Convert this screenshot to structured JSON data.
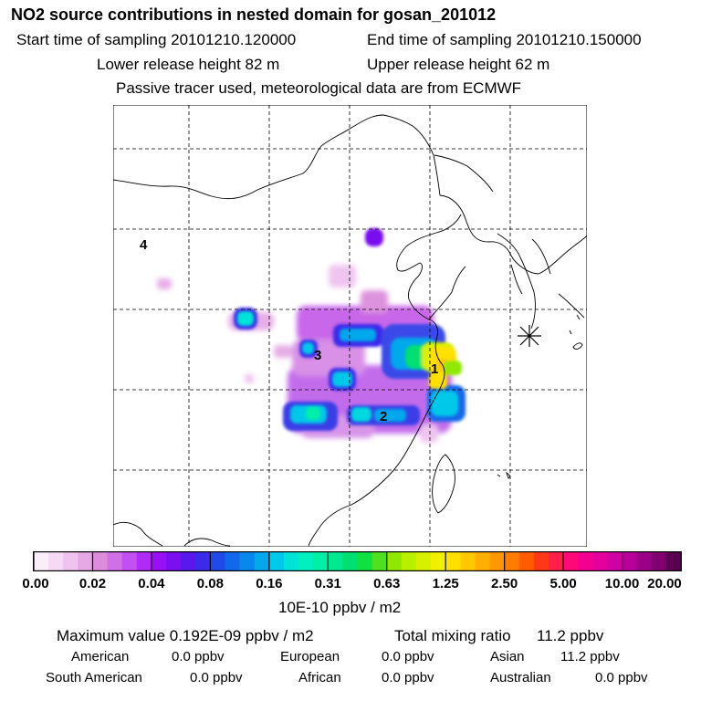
{
  "header": {
    "title": "NO2 source contributions in nested domain for gosan_201012",
    "start": "Start time of sampling 20101210.120000",
    "end": "End time of sampling 20101210.150000",
    "lower": "Lower release height   82 m",
    "upper": "Upper release height   62 m",
    "note": "Passive tracer used, meteorological data are from ECMWF"
  },
  "map": {
    "labels": [
      "1",
      "2",
      "3",
      "4"
    ],
    "station_marker": "release-site-star-icon"
  },
  "colorbar": {
    "ticks": [
      "0.00",
      "0.02",
      "0.04",
      "0.08",
      "0.16",
      "0.31",
      "0.63",
      "1.25",
      "2.50",
      "5.00",
      "10.00",
      "20.00"
    ],
    "unit": "10E-10 ppbv / m2",
    "colors": [
      [
        "#fbeefb",
        "#f6d9f6",
        "#efc2ef",
        "#e6a9e6"
      ],
      [
        "#db8ddb",
        "#d06fe6",
        "#c24ff0",
        "#b02cf6"
      ],
      [
        "#9a10f4",
        "#7a10f0",
        "#5a18ec",
        "#3a2aea"
      ],
      [
        "#1f4ae8",
        "#1268ea",
        "#0888ec",
        "#05a8ec"
      ],
      [
        "#00c8e8",
        "#00e4d8",
        "#00f0c0",
        "#00f0a8"
      ],
      [
        "#00e890",
        "#00e070",
        "#10e040",
        "#50e020"
      ],
      [
        "#90e800",
        "#b8f000",
        "#d8f000",
        "#f0f000"
      ],
      [
        "#ffe000",
        "#ffc800",
        "#ffb000",
        "#ff9800"
      ],
      [
        "#ff7c00",
        "#ff5c00",
        "#ff3818",
        "#ff2048"
      ],
      [
        "#ff0878",
        "#f40090",
        "#e4009c",
        "#d000a0"
      ],
      [
        "#b80098",
        "#9c0088",
        "#800070",
        "#5a0050"
      ]
    ]
  },
  "stats": {
    "max_label": "Maximum value  0.192E-09 ppbv / m2",
    "total_label": "Total mixing ratio",
    "total_value": "11.2 ppbv",
    "regions_row1": [
      {
        "name": "American",
        "value": "0.0 ppbv"
      },
      {
        "name": "European",
        "value": "0.0 ppbv"
      },
      {
        "name": "Asian",
        "value": "11.2 ppbv"
      }
    ],
    "regions_row2": [
      {
        "name": "South American",
        "value": "0.0 ppbv"
      },
      {
        "name": "African",
        "value": "0.0 ppbv"
      },
      {
        "name": "Australian",
        "value": "0.0 ppbv"
      }
    ]
  }
}
